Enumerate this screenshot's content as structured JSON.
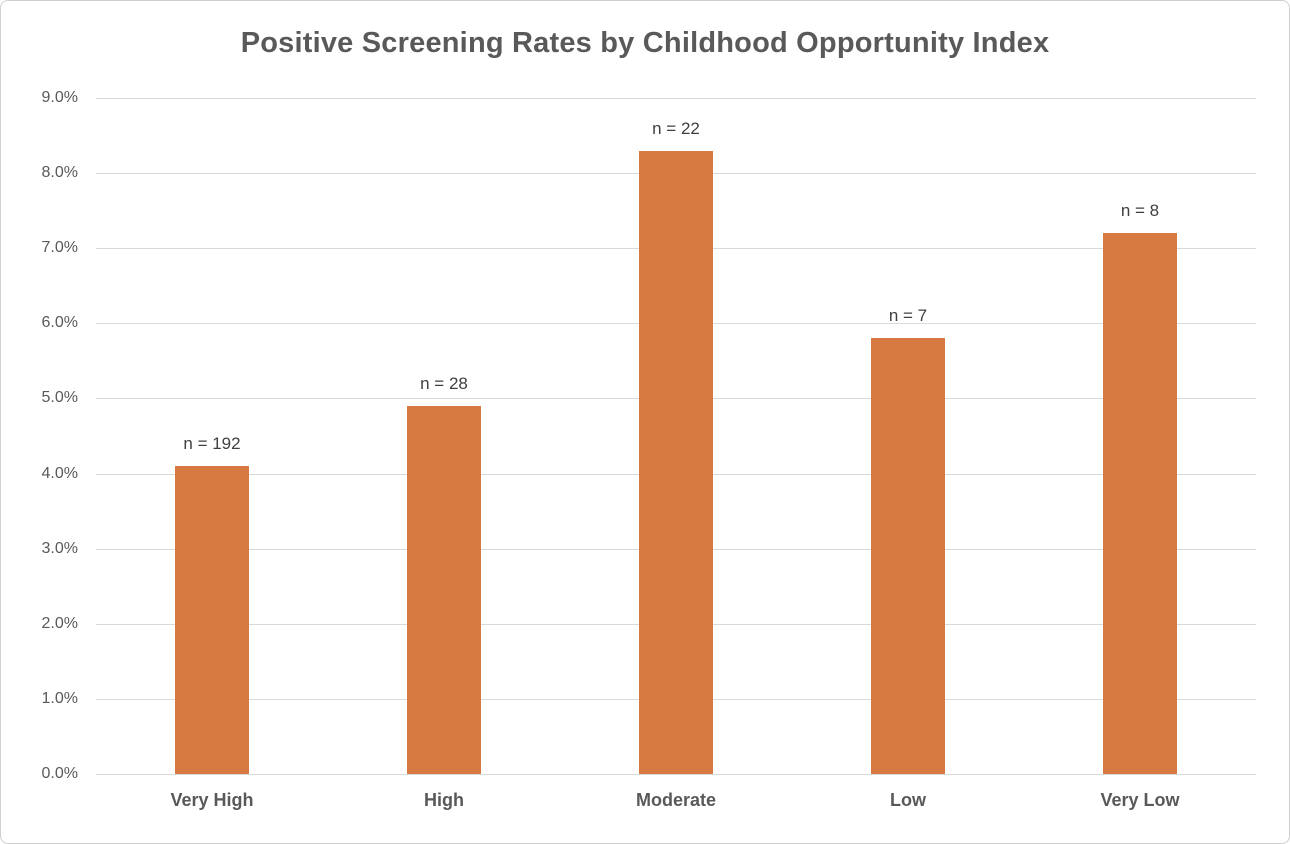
{
  "chart_data": {
    "type": "bar",
    "title": "Positive Screening Rates by Childhood Opportunity Index",
    "categories": [
      "Very High",
      "High",
      "Moderate",
      "Low",
      "Very Low"
    ],
    "values": [
      4.1,
      4.9,
      8.3,
      5.8,
      7.2
    ],
    "bar_labels": [
      "n = 192",
      "n = 28",
      "n = 22",
      "n = 7",
      "n = 8"
    ],
    "xlabel": "",
    "ylabel": "",
    "ylim": [
      0,
      9
    ],
    "ytick_step": 1.0,
    "ytick_labels": [
      "0.0%",
      "1.0%",
      "2.0%",
      "3.0%",
      "4.0%",
      "5.0%",
      "6.0%",
      "7.0%",
      "8.0%",
      "9.0%"
    ],
    "grid": true,
    "legend": "none",
    "colors": {
      "bar": "#d67a42",
      "title": "#595959",
      "axis_labels": "#595959",
      "data_labels": "#404040",
      "gridlines": "#d9d9d9"
    }
  }
}
